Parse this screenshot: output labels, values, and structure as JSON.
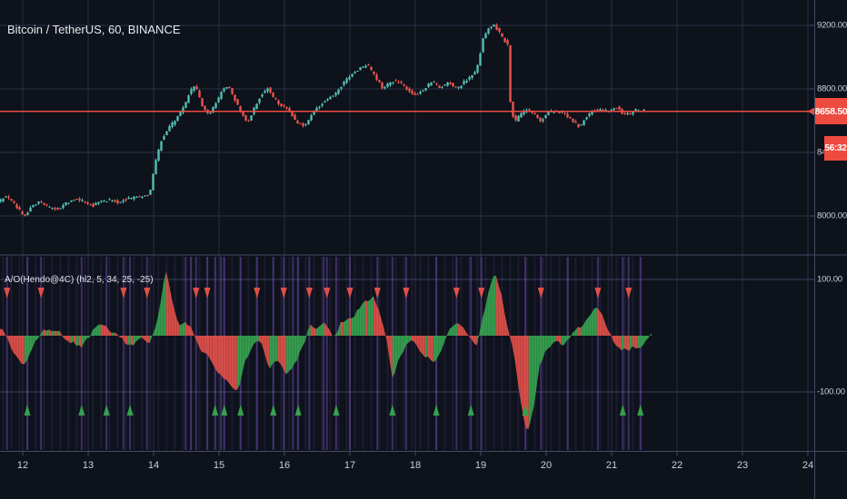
{
  "symbol_bar": {
    "title": "Bitcoin / TetherUS, 60, BINANCE"
  },
  "indicator_bar": {
    "title": "A/O(Hendo@4C) (hl2, 5, 34, 25, -25)"
  },
  "price_axis": {
    "labels": [
      {
        "text": "9200.00",
        "price": 9200
      },
      {
        "text": "8800.00",
        "price": 8800
      },
      {
        "text": "8400.00",
        "price": 8400
      },
      {
        "text": "8000.00",
        "price": 8000
      }
    ],
    "last_price_badge": "8658.50",
    "countdown_badge": "56:32"
  },
  "oscillator_axis": {
    "labels": [
      {
        "text": "100.00",
        "value": 100
      },
      {
        "text": "-100.00",
        "value": -100
      }
    ]
  },
  "time_axis": {
    "labels": [
      "12",
      "13",
      "14",
      "15",
      "16",
      "17",
      "18",
      "19",
      "20",
      "21",
      "22",
      "23",
      "24"
    ]
  },
  "colors": {
    "background": "#0e121b",
    "grid_vertical": "#262d40",
    "grid_price": "#2a3146",
    "grid_osc": "#3a415c",
    "axis_line": "#434b61",
    "axis_text": "#ccd0da",
    "candle_up": "#54beb3",
    "candle_down": "#e9544e",
    "price_line": "#ee4b40",
    "badge_bg": "#ee4b40",
    "osc_green": "#36a14e",
    "osc_red": "#df4f48",
    "signal_purple": "#7b52c1"
  },
  "chart_data": {
    "type": "candlestick+oscillator",
    "title": "Bitcoin / TetherUS, 60, BINANCE",
    "time_ticks": [
      12,
      13,
      14,
      15,
      16,
      17,
      18,
      19,
      20,
      21,
      22,
      23,
      24
    ],
    "price_pane": {
      "y_ticks": [
        9200,
        8800,
        8400,
        8000
      ],
      "last_price": 8658.5,
      "countdown": "56:32",
      "data_start_day": 11.65,
      "data_end_day": 21.58,
      "price_path": [
        [
          11.65,
          8080
        ],
        [
          11.78,
          8130
        ],
        [
          11.88,
          8090
        ],
        [
          12.0,
          8030
        ],
        [
          12.07,
          7995
        ],
        [
          12.18,
          8060
        ],
        [
          12.32,
          8090
        ],
        [
          12.45,
          8055
        ],
        [
          12.58,
          8040
        ],
        [
          12.72,
          8085
        ],
        [
          12.88,
          8110
        ],
        [
          13.0,
          8080
        ],
        [
          13.12,
          8065
        ],
        [
          13.25,
          8095
        ],
        [
          13.4,
          8100
        ],
        [
          13.5,
          8085
        ],
        [
          13.62,
          8105
        ],
        [
          13.75,
          8115
        ],
        [
          13.88,
          8125
        ],
        [
          13.98,
          8135
        ],
        [
          14.06,
          8320
        ],
        [
          14.15,
          8470
        ],
        [
          14.25,
          8540
        ],
        [
          14.38,
          8610
        ],
        [
          14.5,
          8680
        ],
        [
          14.6,
          8790
        ],
        [
          14.68,
          8820
        ],
        [
          14.78,
          8700
        ],
        [
          14.88,
          8640
        ],
        [
          14.98,
          8700
        ],
        [
          15.08,
          8780
        ],
        [
          15.18,
          8820
        ],
        [
          15.28,
          8740
        ],
        [
          15.38,
          8640
        ],
        [
          15.48,
          8590
        ],
        [
          15.58,
          8680
        ],
        [
          15.68,
          8760
        ],
        [
          15.78,
          8810
        ],
        [
          15.88,
          8740
        ],
        [
          15.98,
          8700
        ],
        [
          16.1,
          8670
        ],
        [
          16.22,
          8590
        ],
        [
          16.35,
          8570
        ],
        [
          16.5,
          8660
        ],
        [
          16.65,
          8720
        ],
        [
          16.8,
          8760
        ],
        [
          16.95,
          8840
        ],
        [
          17.1,
          8900
        ],
        [
          17.22,
          8940
        ],
        [
          17.32,
          8950
        ],
        [
          17.42,
          8880
        ],
        [
          17.55,
          8800
        ],
        [
          17.68,
          8850
        ],
        [
          17.8,
          8840
        ],
        [
          17.92,
          8800
        ],
        [
          18.05,
          8760
        ],
        [
          18.18,
          8800
        ],
        [
          18.3,
          8850
        ],
        [
          18.42,
          8810
        ],
        [
          18.55,
          8840
        ],
        [
          18.68,
          8800
        ],
        [
          18.8,
          8850
        ],
        [
          18.9,
          8880
        ],
        [
          18.98,
          8920
        ],
        [
          19.08,
          9120
        ],
        [
          19.16,
          9180
        ],
        [
          19.24,
          9200
        ],
        [
          19.32,
          9160
        ],
        [
          19.46,
          9070
        ],
        [
          19.5,
          8650
        ],
        [
          19.58,
          8600
        ],
        [
          19.65,
          8640
        ],
        [
          19.75,
          8670
        ],
        [
          19.85,
          8650
        ],
        [
          19.95,
          8590
        ],
        [
          20.05,
          8650
        ],
        [
          20.15,
          8660
        ],
        [
          20.3,
          8650
        ],
        [
          20.45,
          8600
        ],
        [
          20.55,
          8560
        ],
        [
          20.65,
          8620
        ],
        [
          20.75,
          8660
        ],
        [
          20.85,
          8670
        ],
        [
          21.0,
          8660
        ],
        [
          21.1,
          8690
        ],
        [
          21.2,
          8650
        ],
        [
          21.3,
          8640
        ],
        [
          21.42,
          8670
        ],
        [
          21.58,
          8658.5
        ]
      ]
    },
    "oscillator_pane": {
      "name": "A/O(Hendo@4C) (hl2, 5, 34, 25, -25)",
      "y_ticks": [
        100,
        -100
      ],
      "values": [
        [
          11.65,
          12
        ],
        [
          11.72,
          5
        ],
        [
          11.82,
          -20
        ],
        [
          11.93,
          -45
        ],
        [
          12.03,
          -55
        ],
        [
          12.18,
          -15
        ],
        [
          12.28,
          8
        ],
        [
          12.42,
          12
        ],
        [
          12.56,
          5
        ],
        [
          12.69,
          -8
        ],
        [
          12.88,
          -22
        ],
        [
          12.97,
          -10
        ],
        [
          13.11,
          14
        ],
        [
          13.25,
          18
        ],
        [
          13.39,
          6
        ],
        [
          13.53,
          -8
        ],
        [
          13.67,
          -18
        ],
        [
          13.74,
          -10
        ],
        [
          13.85,
          -5
        ],
        [
          13.94,
          -12
        ],
        [
          14.01,
          5
        ],
        [
          14.08,
          40
        ],
        [
          14.18,
          120
        ],
        [
          14.29,
          60
        ],
        [
          14.39,
          15
        ],
        [
          14.49,
          28
        ],
        [
          14.57,
          12
        ],
        [
          14.65,
          -5
        ],
        [
          14.74,
          -30
        ],
        [
          14.82,
          -35
        ],
        [
          14.92,
          -55
        ],
        [
          15.06,
          -75
        ],
        [
          15.19,
          -90
        ],
        [
          15.29,
          -95
        ],
        [
          15.4,
          -45
        ],
        [
          15.51,
          -15
        ],
        [
          15.6,
          -5
        ],
        [
          15.68,
          -25
        ],
        [
          15.78,
          -60
        ],
        [
          15.89,
          -40
        ],
        [
          16.03,
          -68
        ],
        [
          16.17,
          -50
        ],
        [
          16.28,
          -20
        ],
        [
          16.38,
          18
        ],
        [
          16.49,
          10
        ],
        [
          16.58,
          22
        ],
        [
          16.68,
          15
        ],
        [
          16.76,
          -5
        ],
        [
          16.86,
          25
        ],
        [
          16.97,
          30
        ],
        [
          17.07,
          35
        ],
        [
          17.18,
          55
        ],
        [
          17.28,
          65
        ],
        [
          17.37,
          70
        ],
        [
          17.46,
          40
        ],
        [
          17.56,
          -10
        ],
        [
          17.65,
          -75
        ],
        [
          17.76,
          -40
        ],
        [
          17.88,
          -10
        ],
        [
          17.97,
          -5
        ],
        [
          18.07,
          -25
        ],
        [
          18.18,
          -40
        ],
        [
          18.29,
          -45
        ],
        [
          18.42,
          -20
        ],
        [
          18.53,
          10
        ],
        [
          18.63,
          22
        ],
        [
          18.74,
          15
        ],
        [
          18.85,
          -10
        ],
        [
          18.94,
          -15
        ],
        [
          19.01,
          20
        ],
        [
          19.12,
          80
        ],
        [
          19.22,
          115
        ],
        [
          19.32,
          70
        ],
        [
          19.4,
          20
        ],
        [
          19.5,
          -30
        ],
        [
          19.6,
          -110
        ],
        [
          19.71,
          -175
        ],
        [
          19.82,
          -120
        ],
        [
          19.89,
          -60
        ],
        [
          19.99,
          -25
        ],
        [
          20.08,
          -15
        ],
        [
          20.17,
          -8
        ],
        [
          20.26,
          -18
        ],
        [
          20.36,
          -5
        ],
        [
          20.44,
          10
        ],
        [
          20.54,
          15
        ],
        [
          20.64,
          30
        ],
        [
          20.72,
          50
        ],
        [
          20.79,
          55
        ],
        [
          20.86,
          35
        ],
        [
          20.96,
          5
        ],
        [
          21.04,
          -12
        ],
        [
          21.14,
          -25
        ],
        [
          21.24,
          -28
        ],
        [
          21.33,
          -18
        ],
        [
          21.42,
          -25
        ],
        [
          21.51,
          -8
        ],
        [
          21.61,
          5
        ]
      ],
      "sell_markers_t": [
        11.76,
        12.28,
        13.54,
        13.9,
        14.65,
        14.82,
        15.58,
        15.99,
        16.38,
        16.65,
        17.0,
        17.42,
        17.86,
        18.63,
        19.01,
        19.92,
        20.79,
        21.26
      ],
      "buy_markers_t": [
        12.07,
        12.9,
        13.28,
        13.64,
        14.94,
        15.08,
        15.33,
        15.83,
        16.21,
        16.79,
        17.65,
        18.32,
        18.85,
        19.68,
        21.17,
        21.44
      ],
      "signal_lines_t": [
        11.76,
        12.07,
        12.28,
        12.9,
        13.28,
        13.54,
        13.64,
        13.9,
        14.49,
        14.57,
        14.65,
        14.82,
        14.94,
        15.03,
        15.08,
        15.33,
        15.58,
        15.83,
        15.99,
        16.13,
        16.21,
        16.38,
        16.6,
        16.65,
        16.79,
        17.0,
        17.42,
        17.65,
        17.86,
        18.32,
        18.63,
        18.85,
        19.01,
        19.68,
        19.92,
        20.33,
        20.79,
        21.17,
        21.26,
        21.44
      ]
    }
  }
}
